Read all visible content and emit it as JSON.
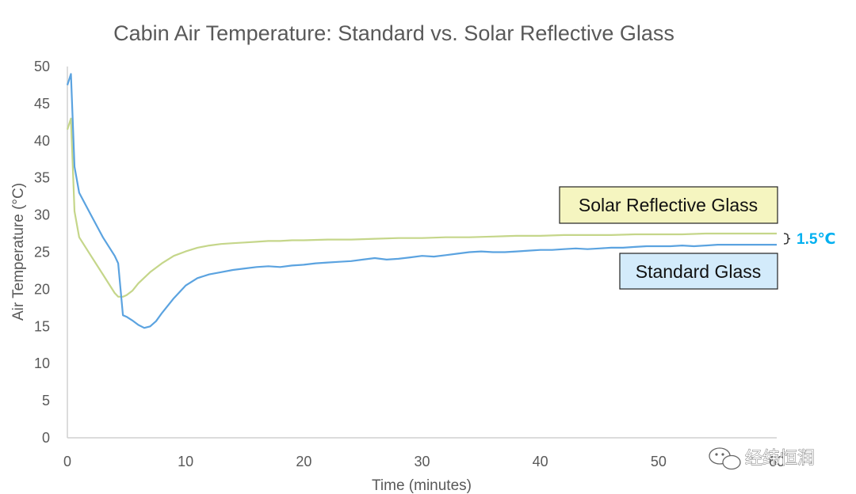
{
  "chart_data": {
    "type": "line",
    "title": "Cabin Air Temperature: Standard vs. Solar Reflective Glass",
    "xlabel": "Time (minutes)",
    "ylabel": "Air Temperature (°C)",
    "xlim": [
      0,
      60
    ],
    "ylim": [
      0,
      50
    ],
    "x_ticks": [
      "0",
      "10",
      "20",
      "30",
      "40",
      "50",
      "60"
    ],
    "y_ticks": [
      "0",
      "5",
      "10",
      "15",
      "20",
      "25",
      "30",
      "35",
      "40",
      "45",
      "50"
    ],
    "grid": false,
    "series": [
      {
        "name": "Standard Glass",
        "color": "#5ba3e0",
        "x": [
          0,
          0.3,
          0.6,
          1,
          2,
          3,
          4,
          4.3,
          4.7,
          5,
          5.5,
          6,
          6.5,
          7,
          7.5,
          8,
          9,
          10,
          11,
          12,
          13,
          14,
          15,
          16,
          17,
          18,
          19,
          20,
          21,
          22,
          23,
          24,
          25,
          26,
          27,
          28,
          29,
          30,
          31,
          32,
          33,
          34,
          35,
          36,
          37,
          38,
          39,
          40,
          41,
          42,
          43,
          44,
          45,
          46,
          47,
          48,
          49,
          50,
          51,
          52,
          53,
          54,
          55,
          56,
          57,
          58,
          59,
          60
        ],
        "y": [
          47.5,
          49,
          36.5,
          33,
          30,
          27,
          24.5,
          23.5,
          16.5,
          16.3,
          15.8,
          15.2,
          14.8,
          15,
          15.7,
          16.8,
          18.8,
          20.5,
          21.5,
          22,
          22.3,
          22.6,
          22.8,
          23,
          23.1,
          23,
          23.2,
          23.3,
          23.5,
          23.6,
          23.7,
          23.8,
          24,
          24.2,
          24,
          24.1,
          24.3,
          24.5,
          24.4,
          24.6,
          24.8,
          25,
          25.1,
          25,
          25,
          25.1,
          25.2,
          25.3,
          25.3,
          25.4,
          25.5,
          25.4,
          25.5,
          25.6,
          25.6,
          25.7,
          25.8,
          25.8,
          25.8,
          25.9,
          25.8,
          25.9,
          26,
          26,
          26,
          26,
          26,
          26
        ]
      },
      {
        "name": "Solar Reflective Glass",
        "color": "#c5d68a",
        "x": [
          0,
          0.3,
          0.6,
          1,
          2,
          3,
          4,
          4.3,
          4.7,
          5,
          5.5,
          6,
          7,
          8,
          9,
          10,
          11,
          12,
          13,
          14,
          15,
          16,
          17,
          18,
          19,
          20,
          22,
          24,
          26,
          28,
          30,
          32,
          34,
          36,
          38,
          40,
          42,
          44,
          46,
          48,
          50,
          52,
          54,
          56,
          58,
          60
        ],
        "y": [
          41.5,
          43,
          30.5,
          27,
          24.5,
          22,
          19.5,
          19,
          19,
          19.2,
          19.8,
          20.8,
          22.3,
          23.5,
          24.5,
          25.1,
          25.6,
          25.9,
          26.1,
          26.2,
          26.3,
          26.4,
          26.5,
          26.5,
          26.6,
          26.6,
          26.7,
          26.7,
          26.8,
          26.9,
          26.9,
          27,
          27,
          27.1,
          27.2,
          27.2,
          27.3,
          27.3,
          27.3,
          27.4,
          27.4,
          27.4,
          27.5,
          27.5,
          27.5,
          27.5
        ]
      }
    ],
    "annotations": {
      "solar_callout": "Solar Reflective Glass",
      "standard_callout": "Standard Glass",
      "difference": "1.5℃"
    },
    "callout_colors": {
      "solar_fill": "#f5f5c0",
      "standard_fill": "#d3ebfb",
      "difference_color": "#00b0f0"
    }
  },
  "watermark": "经纬恒润"
}
